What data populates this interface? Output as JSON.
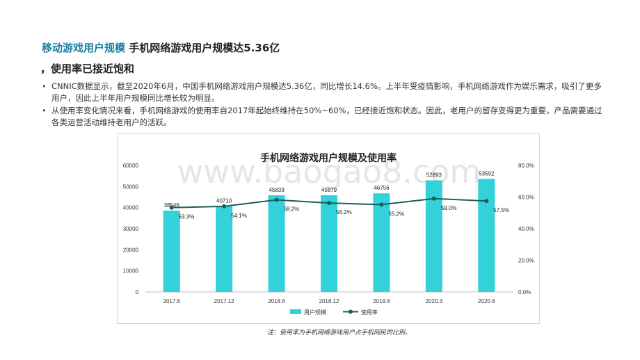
{
  "header": {
    "tag": "移动游戏用户规模",
    "headline_part1": "手机网络游戏用户规模达5.36亿",
    "headline_part2": "，使用率已接近饱和"
  },
  "bullets": [
    "CNNIC数据显示，截至2020年6月，中国手机网络游戏用户规模达5.36亿，同比增长14.6%。上半年受疫情影响，手机网络游戏作为娱乐需求，吸引了更多用户，因此上半年用户规模同比增长较为明显。",
    "从使用率变化情况来看，手机网络游戏的使用率自2017年起始终维持在50%~60%，已经接近饱和状态。因此，老用户的留存变得更为重要，产品需要通过各类运营活动维持老用户的活跃。"
  ],
  "watermark": "www.baogao8.com",
  "note": "注：使用率为手机网络游戏用户占手机网民的比例。",
  "colors": {
    "bar": "#33d1d9",
    "line": "#1b5e5a",
    "accent": "#1a7fa0"
  },
  "chart_data": {
    "type": "bar",
    "title": "手机网络游戏用户规模及使用率",
    "categories": [
      "2017.6",
      "2017.12",
      "2018.6",
      "2018.12",
      "2019.6",
      "2020.3",
      "2020.6"
    ],
    "series": [
      {
        "name": "用户规模",
        "type": "bar",
        "axis": "left",
        "values": [
          38546,
          40710,
          45833,
          45879,
          46756,
          52893,
          53592
        ]
      },
      {
        "name": "使用率",
        "type": "line",
        "axis": "right",
        "values": [
          53.3,
          54.1,
          58.2,
          56.2,
          55.2,
          59.0,
          57.5
        ]
      }
    ],
    "y_left": {
      "ylim": [
        0,
        60000
      ],
      "ticks": [
        "0",
        "10000",
        "20000",
        "30000",
        "40000",
        "50000",
        "60000"
      ]
    },
    "y_right": {
      "ylim": [
        0,
        80
      ],
      "ticks": [
        "0.0%",
        "20.0%",
        "40.0%",
        "60.0%",
        "80.0%"
      ]
    },
    "line_labels": [
      "53.3%",
      "54.1%",
      "58.2%",
      "56.2%",
      "55.2%",
      "59.0%",
      "57.5%"
    ],
    "legend": "bottom-center",
    "grid": false
  }
}
